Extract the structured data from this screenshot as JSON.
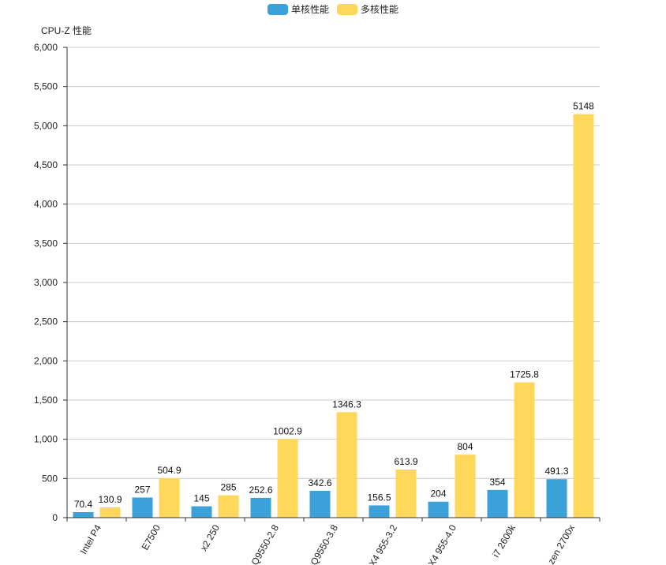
{
  "chart_data": {
    "type": "bar",
    "ylabel": "CPU-Z 性能",
    "ylim": [
      0,
      6000
    ],
    "yticks": [
      "0",
      "500",
      "1,000",
      "1,500",
      "2,000",
      "2,500",
      "3,000",
      "3,500",
      "4,000",
      "4,500",
      "5,000",
      "5,500",
      "6,000"
    ],
    "grid": true,
    "legend_position": "top-center",
    "categories": [
      "Intel P4",
      "E7500",
      "x2 250",
      "Q9550-2.8",
      "Q9550-3.8",
      "X4 955-3.2",
      "X4 955-4.0",
      "i7 2600k",
      "zen 2700x"
    ],
    "series": [
      {
        "name": "单核性能",
        "color": "#3aa1d9",
        "values": [
          70.4,
          257,
          145,
          252.6,
          342.6,
          156.5,
          204,
          354,
          491.3
        ],
        "labels": [
          "70.4",
          "257",
          "145",
          "252.6",
          "342.6",
          "156.5",
          "204",
          "354",
          "491.3"
        ]
      },
      {
        "name": "多核性能",
        "color": "#ffd75a",
        "values": [
          130.9,
          504.9,
          285,
          1002.9,
          1346.3,
          613.9,
          804,
          1725.8,
          5148
        ],
        "labels": [
          "130.9",
          "504.9",
          "285",
          "1002.9",
          "1346.3",
          "613.9",
          "804",
          "1725.8",
          "5148"
        ]
      }
    ]
  }
}
